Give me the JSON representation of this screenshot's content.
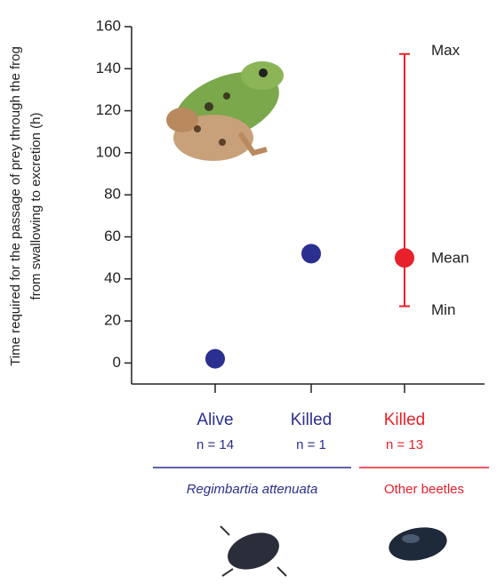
{
  "chart_data": {
    "type": "scatter",
    "y_label": [
      "Time required for the passage of prey through the frog",
      "from swallowing to excretion (h)"
    ],
    "categories": [
      "Alive",
      "Killed",
      "Killed"
    ],
    "sample_sizes": [
      "n = 14",
      "n = 1",
      "n = 13"
    ],
    "values": [
      2,
      52,
      50
    ],
    "point_colors": [
      "#2b2f8f",
      "#2b2f8f",
      "#e8202a"
    ],
    "range": {
      "index": 2,
      "min": 27,
      "max": 147,
      "color": "#e8202a"
    },
    "range_labels": {
      "max": "Max",
      "mean": "Mean",
      "min": "Min"
    },
    "groups": [
      {
        "label": "Regimbartia attenuata",
        "color": "#2b2f8f",
        "from": 0,
        "to": 1,
        "italic": true
      },
      {
        "label": "Other beetles",
        "color": "#e8202a",
        "from": 2,
        "to": 2,
        "italic": false
      }
    ],
    "ylim": [
      -10,
      160
    ],
    "yticks": [
      0,
      20,
      40,
      60,
      80,
      100,
      120,
      140,
      160
    ]
  }
}
